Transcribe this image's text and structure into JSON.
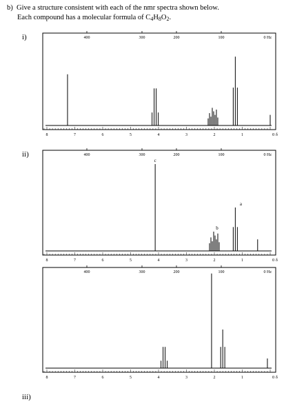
{
  "question": {
    "label": "b)",
    "line1": "Give a structure consistent with each of the nmr spectra shown below.",
    "line2_prefix": "Each compound has a molecular formula of C",
    "c_sub": "4",
    "h_text": "H",
    "h_sub": "8",
    "o_text": "O",
    "o_sub": "2",
    "line2_suffix": "."
  },
  "parts": [
    "i)",
    "ii)",
    "iii)"
  ],
  "spectrum": {
    "hz_ticks": [
      "400",
      "300",
      "200",
      "100"
    ],
    "hz_end_label": "0 Hz",
    "ppm_ticks": [
      "8",
      "7",
      "6",
      "5",
      "4",
      "3",
      "2",
      "1"
    ],
    "ppm_end_label": "0 δ"
  },
  "spectra": [
    {
      "peak_labels": [],
      "peaks": [
        {
          "ppm": 7.26,
          "height": 0.58,
          "type": "singlet"
        },
        {
          "ppm": 4.12,
          "height": 0.42,
          "type": "quartet"
        },
        {
          "ppm": 2.05,
          "height": 0.2,
          "type": "multiplet"
        },
        {
          "ppm": 1.25,
          "height": 0.78,
          "type": "triplet"
        },
        {
          "ppm": 0.0,
          "height": 0.12,
          "type": "singlet"
        }
      ]
    },
    {
      "peak_labels": [
        {
          "text": "c",
          "ppm": 4.12
        },
        {
          "text": "b",
          "ppm": 1.9
        },
        {
          "text": "a",
          "ppm": 1.05
        }
      ],
      "peaks": [
        {
          "ppm": 4.12,
          "height": 0.9,
          "type": "singlet"
        },
        {
          "ppm": 2.0,
          "height": 0.2,
          "type": "multiplet"
        },
        {
          "ppm": 1.25,
          "height": 0.45,
          "type": "triplet"
        },
        {
          "ppm": 0.45,
          "height": 0.12,
          "type": "singlet"
        }
      ]
    },
    {
      "peak_labels": [],
      "peaks": [
        {
          "ppm": 3.8,
          "height": 0.22,
          "type": "quartet"
        },
        {
          "ppm": 2.1,
          "height": 0.98,
          "type": "singlet"
        },
        {
          "ppm": 1.7,
          "height": 0.4,
          "type": "triplet"
        },
        {
          "ppm": 0.1,
          "height": 0.1,
          "type": "singlet"
        }
      ]
    }
  ]
}
